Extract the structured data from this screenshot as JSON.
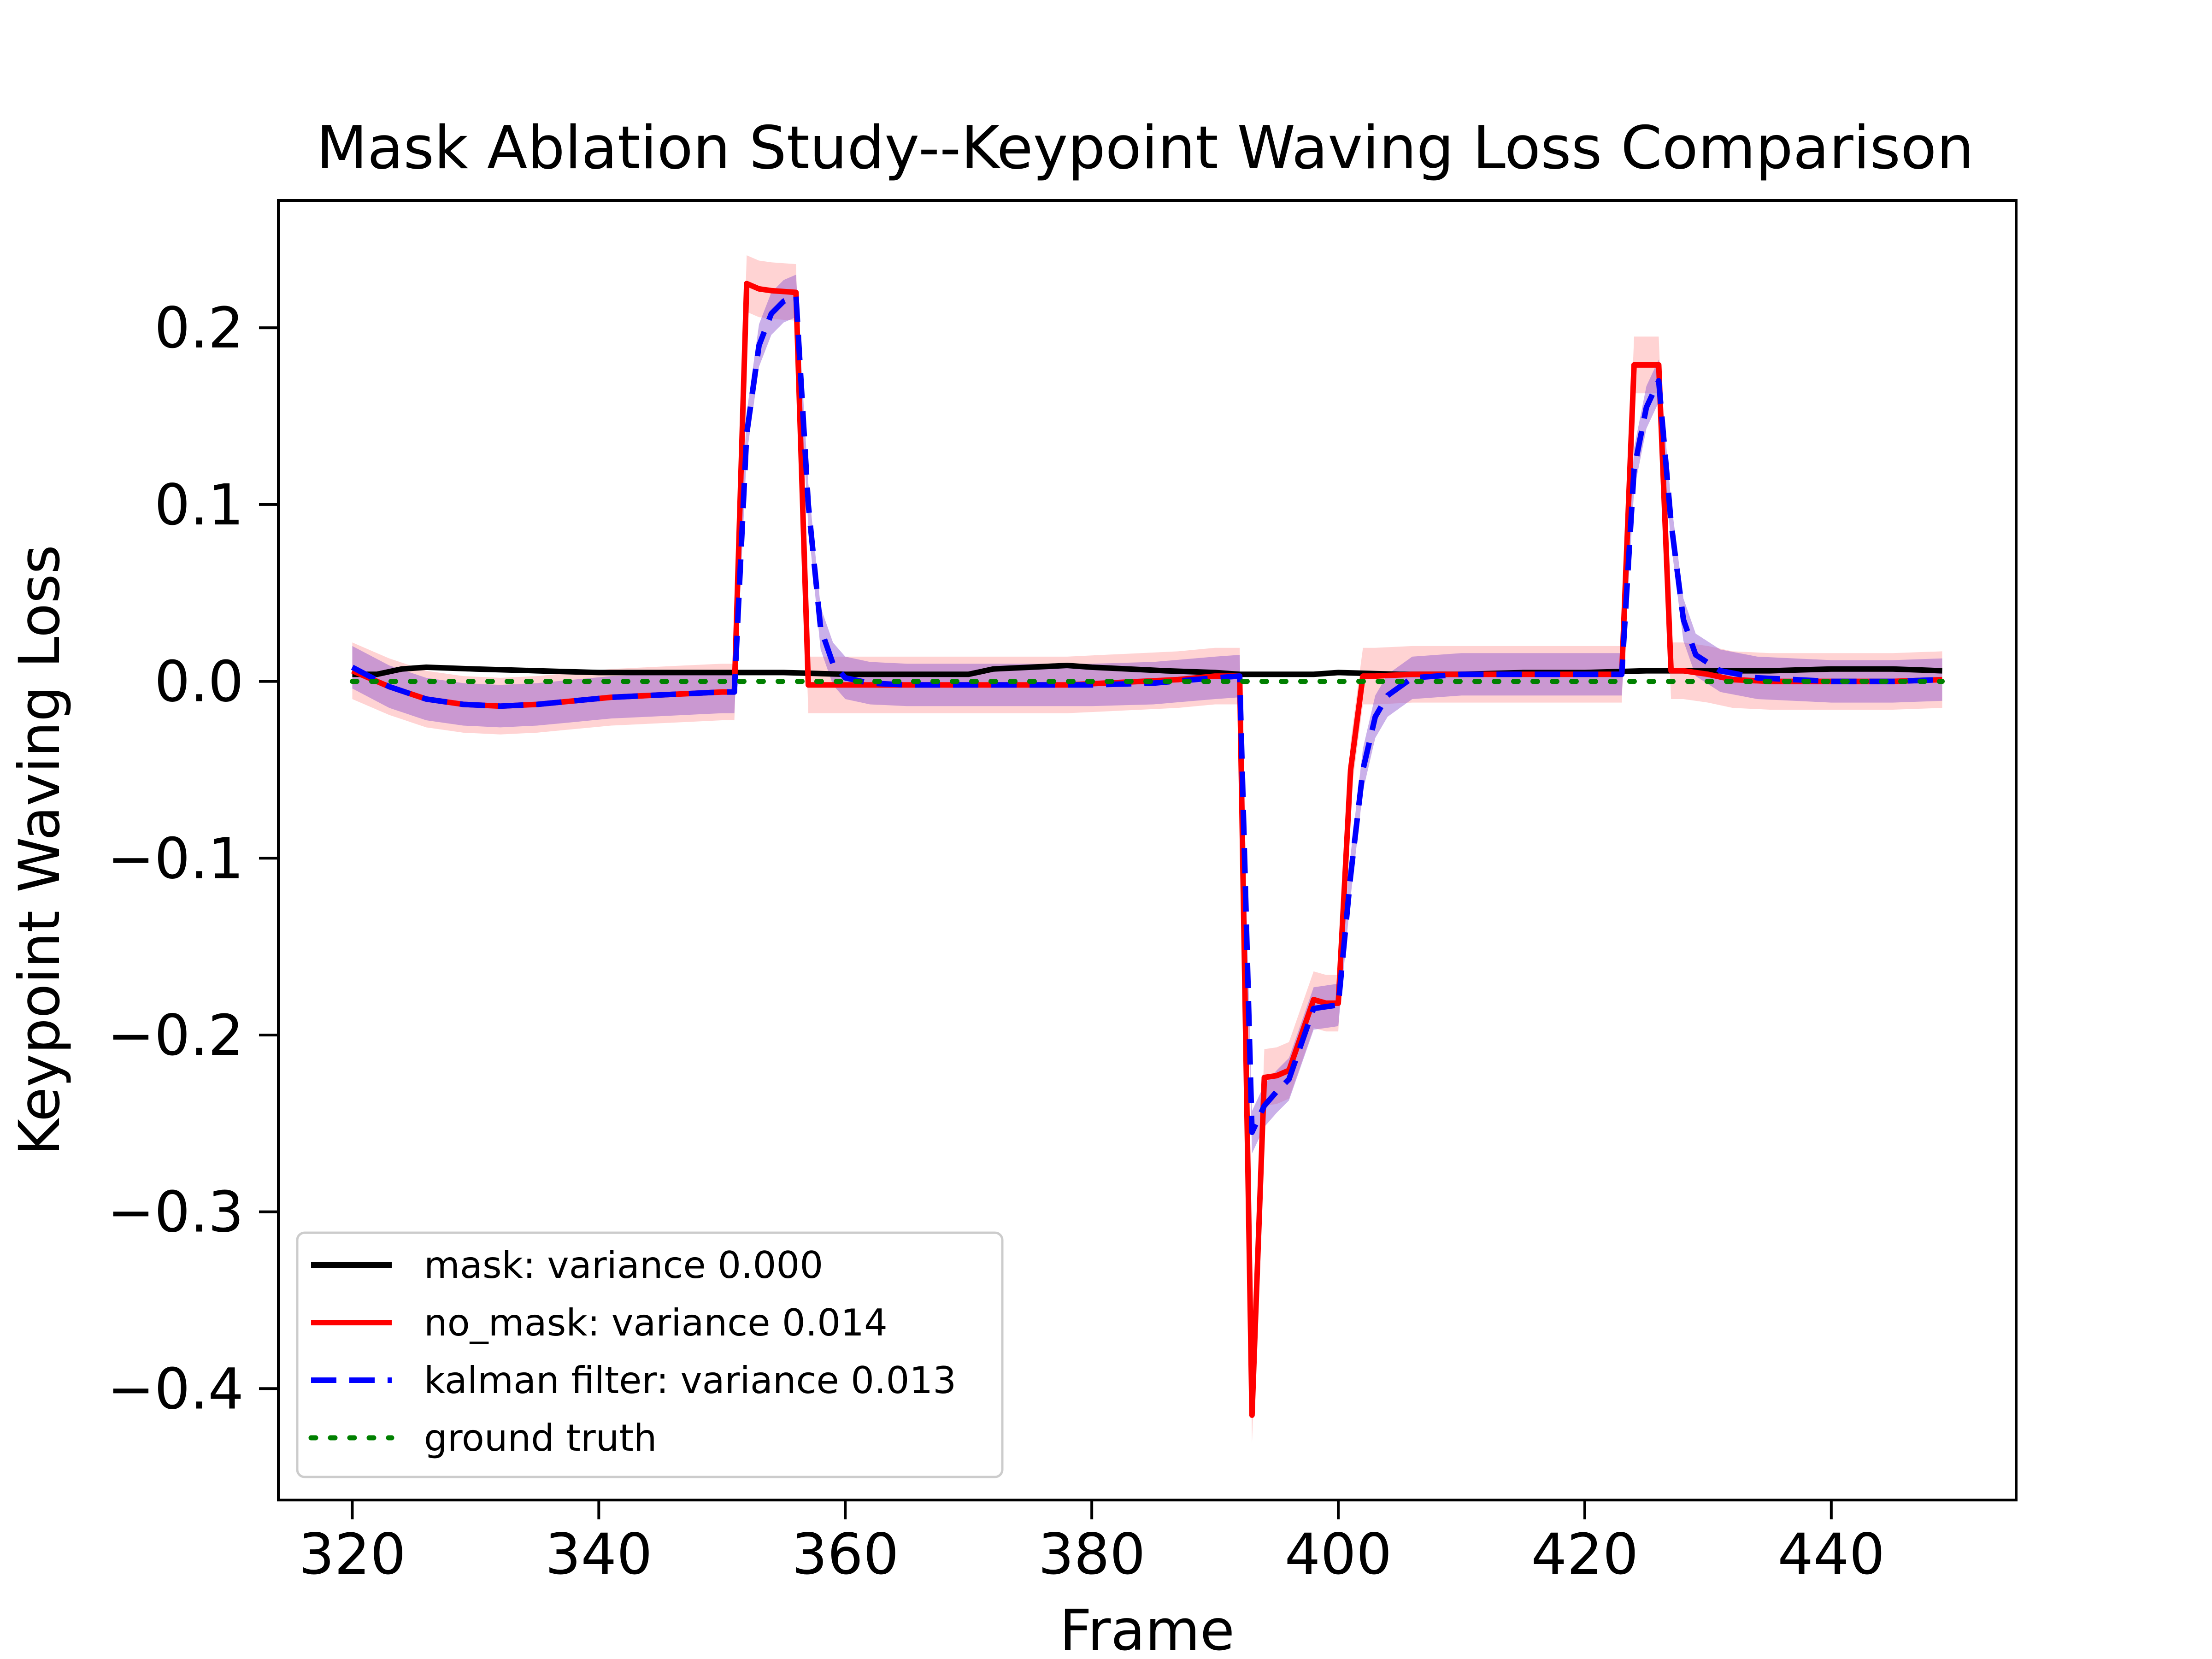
{
  "chart_data": {
    "type": "line",
    "title": "Mask Ablation Study--Keypoint Waving Loss Comparison",
    "xlabel": "Frame",
    "ylabel": "Keypoint Waving Loss",
    "xlim": [
      314,
      455
    ],
    "ylim": [
      -0.463,
      0.272
    ],
    "xticks": [
      320,
      340,
      360,
      380,
      400,
      420,
      440
    ],
    "xtick_labels": [
      "320",
      "340",
      "360",
      "380",
      "400",
      "420",
      "440"
    ],
    "yticks": [
      0.2,
      0.1,
      0.0,
      -0.1,
      -0.2,
      -0.3,
      -0.4
    ],
    "ytick_labels": [
      "0.2",
      "0.1",
      "0.0",
      "−0.1",
      "−0.2",
      "−0.3",
      "−0.4"
    ],
    "grid": false,
    "legend_position": "lower-left",
    "series": [
      {
        "name": "mask: variance 0.000",
        "color": "#000000",
        "style": "solid",
        "x": [
          320,
          322,
          324,
          326,
          330,
          335,
          340,
          345,
          350,
          355,
          360,
          365,
          370,
          372,
          375,
          378,
          380,
          383,
          386,
          390,
          392,
          395,
          398,
          400,
          405,
          410,
          415,
          420,
          425,
          430,
          435,
          440,
          445,
          449
        ],
        "y": [
          0.004,
          0.004,
          0.007,
          0.008,
          0.007,
          0.006,
          0.005,
          0.005,
          0.005,
          0.005,
          0.004,
          0.004,
          0.004,
          0.007,
          0.008,
          0.009,
          0.008,
          0.007,
          0.006,
          0.005,
          0.004,
          0.004,
          0.004,
          0.005,
          0.004,
          0.004,
          0.005,
          0.005,
          0.006,
          0.006,
          0.006,
          0.007,
          0.007,
          0.006
        ]
      },
      {
        "name": "no_mask: variance 0.014",
        "color": "#ff0000",
        "style": "solid",
        "x": [
          320,
          323,
          326,
          329,
          332,
          335,
          338,
          341,
          344,
          347,
          350,
          351,
          352,
          353,
          354,
          356,
          357,
          358,
          360,
          363,
          366,
          369,
          372,
          375,
          378,
          381,
          384,
          387,
          390,
          392,
          393,
          394,
          395,
          396,
          397,
          398,
          399,
          400,
          401,
          402,
          403,
          406,
          410,
          415,
          420,
          423,
          424,
          425,
          426,
          427,
          428,
          430,
          432,
          435,
          440,
          445,
          449
        ],
        "y": [
          0.006,
          -0.003,
          -0.01,
          -0.013,
          -0.014,
          -0.013,
          -0.011,
          -0.009,
          -0.008,
          -0.007,
          -0.006,
          -0.006,
          0.225,
          0.222,
          0.221,
          0.22,
          -0.002,
          -0.002,
          -0.002,
          -0.002,
          -0.002,
          -0.002,
          -0.002,
          -0.002,
          -0.002,
          -0.001,
          0.0,
          0.001,
          0.003,
          0.003,
          -0.415,
          -0.224,
          -0.223,
          -0.22,
          -0.2,
          -0.18,
          -0.182,
          -0.182,
          -0.05,
          0.003,
          0.003,
          0.004,
          0.004,
          0.004,
          0.004,
          0.004,
          0.179,
          0.179,
          0.179,
          0.006,
          0.006,
          0.004,
          0.001,
          0.0,
          0.0,
          0.0,
          0.001
        ]
      },
      {
        "name": "kalman filter: variance 0.013",
        "color": "#0000ff",
        "style": "dashed",
        "x": [
          320,
          323,
          326,
          329,
          332,
          335,
          338,
          341,
          344,
          347,
          350,
          351,
          352,
          353,
          354,
          355,
          356,
          357,
          358,
          359,
          360,
          362,
          365,
          370,
          375,
          380,
          385,
          390,
          392,
          393,
          394,
          395,
          396,
          397,
          398,
          399,
          400,
          401,
          402,
          403,
          404,
          406,
          410,
          415,
          420,
          423,
          424,
          425,
          426,
          427,
          428,
          429,
          431,
          434,
          440,
          445,
          449
        ],
        "y": [
          0.008,
          -0.003,
          -0.01,
          -0.013,
          -0.014,
          -0.013,
          -0.011,
          -0.009,
          -0.008,
          -0.007,
          -0.006,
          -0.006,
          0.14,
          0.19,
          0.208,
          0.215,
          0.218,
          0.1,
          0.03,
          0.01,
          0.002,
          -0.001,
          -0.002,
          -0.002,
          -0.002,
          -0.002,
          -0.001,
          0.002,
          0.003,
          -0.255,
          -0.24,
          -0.232,
          -0.225,
          -0.205,
          -0.185,
          -0.184,
          -0.183,
          -0.11,
          -0.05,
          -0.02,
          -0.008,
          0.002,
          0.004,
          0.004,
          0.004,
          0.004,
          0.12,
          0.155,
          0.17,
          0.09,
          0.035,
          0.015,
          0.006,
          0.002,
          0.0,
          0.0,
          0.001
        ]
      },
      {
        "name": "ground truth",
        "color": "#008000",
        "style": "dotted",
        "x": [
          320,
          449
        ],
        "y": [
          0.0,
          0.0
        ]
      }
    ]
  }
}
